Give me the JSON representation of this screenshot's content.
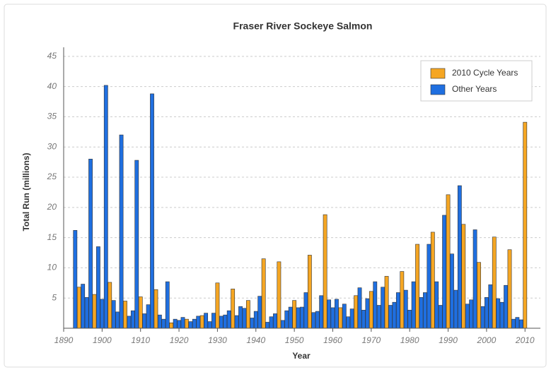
{
  "chart_data": {
    "type": "bar",
    "title": "Fraser River Sockeye Salmon",
    "x_label": "Year",
    "y_label": "Total Run (millions)",
    "x": [
      1893,
      1894,
      1895,
      1896,
      1897,
      1898,
      1899,
      1900,
      1901,
      1902,
      1903,
      1904,
      1905,
      1906,
      1907,
      1908,
      1909,
      1910,
      1911,
      1912,
      1913,
      1914,
      1915,
      1916,
      1917,
      1918,
      1919,
      1920,
      1921,
      1922,
      1923,
      1924,
      1925,
      1926,
      1927,
      1928,
      1929,
      1930,
      1931,
      1932,
      1933,
      1934,
      1935,
      1936,
      1937,
      1938,
      1939,
      1940,
      1941,
      1942,
      1943,
      1944,
      1945,
      1946,
      1947,
      1948,
      1949,
      1950,
      1951,
      1952,
      1953,
      1954,
      1955,
      1956,
      1957,
      1958,
      1959,
      1960,
      1961,
      1962,
      1963,
      1964,
      1965,
      1966,
      1967,
      1968,
      1969,
      1970,
      1971,
      1972,
      1973,
      1974,
      1975,
      1976,
      1977,
      1978,
      1979,
      1980,
      1981,
      1982,
      1983,
      1984,
      1985,
      1986,
      1987,
      1988,
      1989,
      1990,
      1991,
      1992,
      1993,
      1994,
      1995,
      1996,
      1997,
      1998,
      1999,
      2000,
      2001,
      2002,
      2003,
      2004,
      2005,
      2006,
      2007,
      2008,
      2009,
      2010
    ],
    "series": [
      {
        "name": "2010 Cycle Years",
        "color": "#f5a623",
        "values": [
          null,
          6.8,
          null,
          null,
          null,
          5.6,
          null,
          null,
          null,
          7.6,
          null,
          null,
          null,
          4.5,
          null,
          null,
          null,
          5.2,
          null,
          null,
          null,
          6.4,
          null,
          null,
          null,
          0.9,
          null,
          null,
          null,
          1.5,
          null,
          null,
          null,
          2.1,
          null,
          null,
          null,
          7.5,
          null,
          null,
          null,
          6.5,
          null,
          null,
          null,
          4.6,
          null,
          null,
          null,
          11.5,
          null,
          null,
          null,
          11.0,
          null,
          null,
          null,
          4.6,
          null,
          null,
          null,
          12.1,
          null,
          null,
          null,
          18.8,
          null,
          null,
          null,
          3.4,
          null,
          null,
          null,
          5.4,
          null,
          null,
          null,
          6.1,
          null,
          null,
          null,
          8.6,
          null,
          null,
          null,
          9.4,
          null,
          null,
          null,
          13.9,
          null,
          null,
          null,
          15.9,
          null,
          null,
          null,
          22.1,
          null,
          null,
          null,
          17.2,
          null,
          null,
          null,
          10.9,
          null,
          null,
          null,
          15.1,
          null,
          null,
          null,
          13.0,
          null,
          null,
          null,
          34.1
        ]
      },
      {
        "name": "Other Years",
        "color": "#1f6fe0",
        "values": [
          16.2,
          null,
          7.3,
          5.1,
          28,
          null,
          13.5,
          4.8,
          40.2,
          null,
          4.6,
          2.7,
          32,
          null,
          2.0,
          2.9,
          27.8,
          null,
          2.4,
          3.9,
          38.8,
          null,
          2.2,
          1.5,
          7.7,
          null,
          1.5,
          1.3,
          1.8,
          null,
          1.1,
          1.5,
          2.0,
          null,
          2.5,
          1.1,
          2.5,
          null,
          2.0,
          2.2,
          2.9,
          null,
          2.1,
          3.6,
          3.3,
          null,
          1.7,
          2.8,
          5.3,
          null,
          1.0,
          1.9,
          2.4,
          null,
          1.3,
          2.9,
          3.5,
          null,
          3.4,
          3.5,
          5.9,
          null,
          2.6,
          2.8,
          5.4,
          null,
          4.7,
          3.4,
          4.8,
          null,
          4.0,
          1.9,
          3.2,
          null,
          6.7,
          3.0,
          4.9,
          null,
          7.7,
          3.8,
          6.8,
          null,
          3.8,
          4.3,
          5.9,
          null,
          6.3,
          3.0,
          7.7,
          null,
          5.1,
          5.9,
          13.9,
          null,
          7.7,
          3.8,
          18.7,
          null,
          12.3,
          6.3,
          23.6,
          null,
          4.0,
          4.7,
          16.3,
          null,
          3.6,
          5.1,
          7.2,
          null,
          4.9,
          4.3,
          7.1,
          null,
          1.5,
          1.8,
          1.4,
          null
        ]
      }
    ],
    "xlim": [
      1890,
      2014
    ],
    "xticks": [
      1890,
      1900,
      1910,
      1920,
      1930,
      1940,
      1950,
      1960,
      1970,
      1980,
      1990,
      2000,
      2010
    ],
    "ylim": [
      0,
      46.5
    ],
    "yticks": [
      5,
      10,
      15,
      20,
      25,
      30,
      35,
      40,
      45
    ],
    "grid": true,
    "legend": "upper right"
  }
}
